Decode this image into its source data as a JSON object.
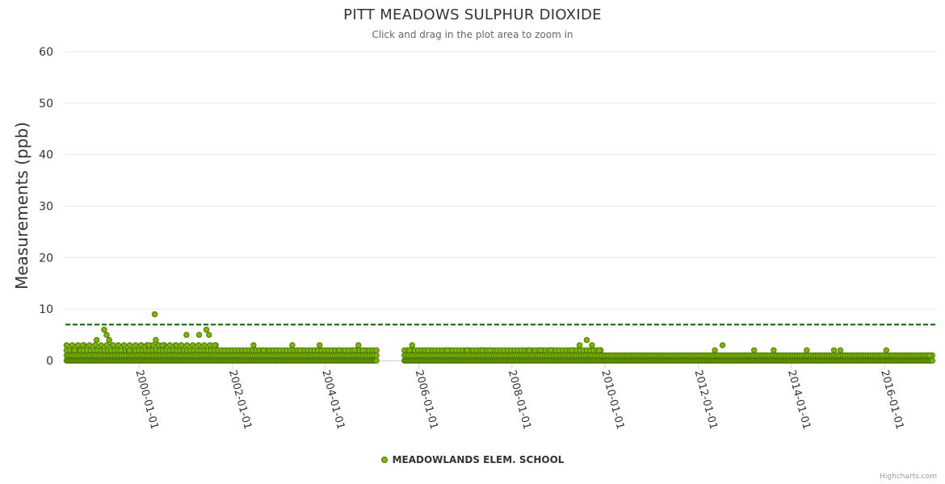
{
  "chart_data": {
    "type": "scatter",
    "title": "PITT MEADOWS SULPHUR DIOXIDE",
    "subtitle": "Click and drag in the plot area to zoom in",
    "ylabel": "Measurements (ppb)",
    "xlabel": "",
    "ylim": [
      0,
      60
    ],
    "xlim": [
      "1998-06-01",
      "2017-02-15"
    ],
    "y_ticks": [
      0,
      10,
      20,
      30,
      40,
      50,
      60
    ],
    "x_ticks": [
      "2000-01-01",
      "2002-01-01",
      "2004-01-01",
      "2006-01-01",
      "2008-01-01",
      "2010-01-01",
      "2012-01-01",
      "2014-01-01",
      "2016-01-01"
    ],
    "grid": "horizontal",
    "legend_position": "bottom-center",
    "objective_line": {
      "value": 7,
      "style": "dashed",
      "color": "#006400"
    },
    "series": [
      {
        "name": "MEADOWLANDS ELEM. SCHOOL",
        "color": "#7cb600",
        "marker": "circle",
        "segments": [
          {
            "start": "1998-06-10",
            "end": "2005-02-10"
          },
          {
            "start": "2005-09-10",
            "end": "2017-01-15"
          }
        ],
        "baseline_levels": [
          0,
          1,
          2,
          3
        ],
        "points": [
          [
            "1998-08-10",
            2
          ],
          [
            "1998-10-15",
            3
          ],
          [
            "1999-02-01",
            4
          ],
          [
            "1999-04-01",
            6
          ],
          [
            "1999-04-20",
            5
          ],
          [
            "1999-05-10",
            4
          ],
          [
            "1999-06-10",
            3
          ],
          [
            "1999-08-10",
            2
          ],
          [
            "1999-10-15",
            2
          ],
          [
            "2000-01-15",
            3
          ],
          [
            "2000-03-15",
            3
          ],
          [
            "2000-05-01",
            9
          ],
          [
            "2000-05-10",
            4
          ],
          [
            "2000-07-01",
            3
          ],
          [
            "2000-10-15",
            3
          ],
          [
            "2001-01-05",
            5
          ],
          [
            "2001-04-15",
            5
          ],
          [
            "2001-06-10",
            6
          ],
          [
            "2001-07-01",
            5
          ],
          [
            "2001-08-15",
            3
          ],
          [
            "2002-06-15",
            3
          ],
          [
            "2002-09-01",
            2
          ],
          [
            "2003-04-15",
            3
          ],
          [
            "2003-06-15",
            2
          ],
          [
            "2003-11-15",
            3
          ],
          [
            "2004-04-15",
            2
          ],
          [
            "2004-08-15",
            2
          ],
          [
            "2004-09-15",
            3
          ],
          [
            "2004-10-20",
            2
          ],
          [
            "2005-10-20",
            2
          ],
          [
            "2005-11-10",
            3
          ],
          [
            "2006-03-15",
            2
          ],
          [
            "2006-08-15",
            2
          ],
          [
            "2007-01-15",
            2
          ],
          [
            "2007-05-15",
            2
          ],
          [
            "2007-07-15",
            2
          ],
          [
            "2008-05-15",
            2
          ],
          [
            "2008-08-15",
            2
          ],
          [
            "2008-11-01",
            2
          ],
          [
            "2009-04-15",
            2
          ],
          [
            "2009-06-15",
            3
          ],
          [
            "2009-08-10",
            4
          ],
          [
            "2009-09-20",
            3
          ],
          [
            "2009-11-15",
            2
          ],
          [
            "2012-05-10",
            2
          ],
          [
            "2012-07-10",
            3
          ],
          [
            "2013-03-15",
            2
          ],
          [
            "2013-08-15",
            2
          ],
          [
            "2014-05-01",
            2
          ],
          [
            "2014-12-01",
            2
          ],
          [
            "2015-01-20",
            2
          ],
          [
            "2016-01-15",
            2
          ],
          [
            "2016-12-20",
            1
          ]
        ]
      }
    ]
  },
  "credits": "Highcharts.com"
}
